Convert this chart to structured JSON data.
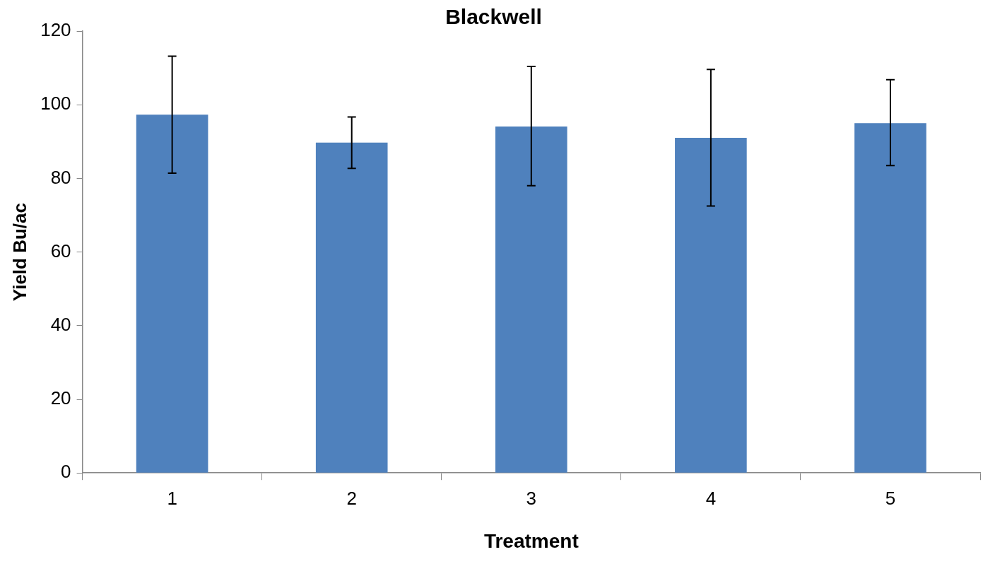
{
  "chart_data": {
    "type": "bar",
    "title": "Blackwell",
    "xlabel": "Treatment",
    "ylabel": "Yield Bu/ac",
    "categories": [
      "1",
      "2",
      "3",
      "4",
      "5"
    ],
    "values": [
      97.3,
      89.7,
      94.1,
      91.0,
      95.0
    ],
    "errors": [
      [
        81.4,
        113.2
      ],
      [
        82.7,
        96.7
      ],
      [
        78.0,
        110.4
      ],
      [
        72.5,
        109.6
      ],
      [
        83.5,
        106.8
      ]
    ],
    "color": "#4f81bd",
    "ylim": [
      0,
      120
    ],
    "yticks": [
      0,
      20,
      40,
      60,
      80,
      100,
      120
    ],
    "grid": false,
    "legend": false
  }
}
